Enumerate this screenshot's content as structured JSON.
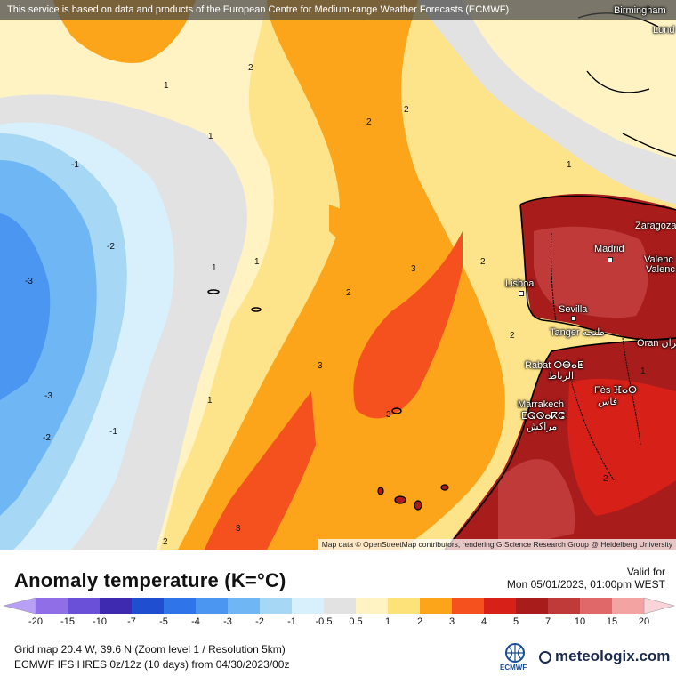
{
  "banner": "This service is based on data and products of the European Centre for Medium-range Weather Forecasts (ECMWF)",
  "attribution": "Map data © OpenStreetMap contributors, rendering GIScience Research Group @ Heidelberg University",
  "cities": [
    {
      "id": "birmingham",
      "label": "Birmingham"
    },
    {
      "id": "london",
      "label": "Lond"
    },
    {
      "id": "zaragoza",
      "label": "Zaragoza"
    },
    {
      "id": "madrid",
      "label": "Madrid"
    },
    {
      "id": "valencia1",
      "label": "Valenc"
    },
    {
      "id": "valencia2",
      "label": "Valenc"
    },
    {
      "id": "lisboa",
      "label": "Lisboa"
    },
    {
      "id": "sevilla",
      "label": "Sevilla"
    },
    {
      "id": "tanger",
      "label": "Tanger طنجة"
    },
    {
      "id": "oran",
      "label": "Oran وهران"
    },
    {
      "id": "rabat",
      "label": "Rabat ⵔⴱⴰⵟ"
    },
    {
      "id": "rabat-ar",
      "label": "الرباط"
    },
    {
      "id": "fes",
      "label": "Fès ⴼⴰⵙ"
    },
    {
      "id": "fes-ar",
      "label": "فاس"
    },
    {
      "id": "marrakech",
      "label": "Marrakech"
    },
    {
      "id": "marrakech-tf",
      "label": "ⵎⵕⵕⴰⴽⵛ"
    },
    {
      "id": "marrakech-ar",
      "label": "مراكش"
    }
  ],
  "contour_labels": [
    "2",
    "1",
    "2",
    "2",
    "1",
    "-1",
    "1",
    "1",
    "-2",
    "-3",
    "1",
    "2",
    "3",
    "2",
    "3",
    "2",
    "-3",
    "1",
    "-1",
    "-2",
    "3",
    "3",
    "2",
    "2",
    "1"
  ],
  "legend": {
    "title": "Anomaly temperature (K=°C)",
    "valid_label": "Valid for",
    "valid_date": "Mon 05/01/2023, 01:00pm WEST",
    "ticks": [
      "-20",
      "-15",
      "-10",
      "-7",
      "-5",
      "-4",
      "-3",
      "-2",
      "-1",
      "-0.5",
      "0.5",
      "1",
      "2",
      "3",
      "4",
      "5",
      "7",
      "10",
      "15",
      "20"
    ],
    "colors": [
      "#b7a0f5",
      "#8f6ee8",
      "#6a4fd8",
      "#3d2ab0",
      "#1f4fd0",
      "#2f74e8",
      "#4a96f0",
      "#6fb6f5",
      "#a6d8f5",
      "#d8f0fb",
      "#e2e2e2",
      "#fff3c4",
      "#fde27a",
      "#fca51a",
      "#f4511e",
      "#d62018",
      "#a81c1c",
      "#c03a3a",
      "#e06868",
      "#f4a3a3",
      "#f9d4d8"
    ]
  },
  "footer": {
    "line1": "Grid map 20.4 W, 39.6 N (Zoom level 1 / Resolution 5km)",
    "line2": "ECMWF IFS HRES 0z/12z (10 days) from 04/30/2023/00z",
    "ecmwf": "ECMWF",
    "brand": "meteologix.com"
  }
}
